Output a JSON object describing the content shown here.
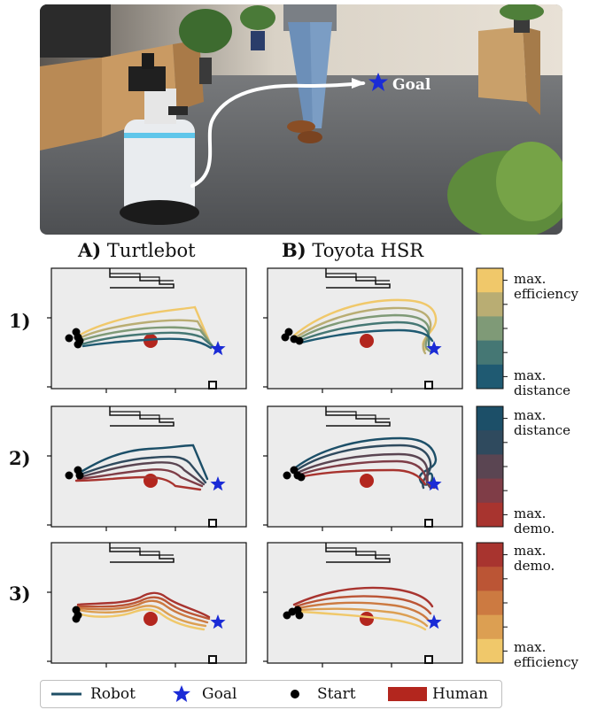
{
  "photo": {
    "goal_label": "Goal"
  },
  "columns": [
    {
      "letter": "A)",
      "name": "Turtlebot"
    },
    {
      "letter": "B)",
      "name": "Toyota HSR"
    }
  ],
  "rows": [
    "1)",
    "2)",
    "3)"
  ],
  "colorbars": [
    {
      "top_label": "max.\nefficiency",
      "bottom_label": "max.\ndistance",
      "colors": [
        "#f0c86a",
        "#b9ad73",
        "#7f9a77",
        "#457774",
        "#1f5a72"
      ]
    },
    {
      "top_label": "max.\ndistance",
      "bottom_label": "max.\ndemo.",
      "colors": [
        "#1c4f68",
        "#2f4a5e",
        "#5a4552",
        "#7f3d47",
        "#a8342f"
      ]
    },
    {
      "top_label": "max.\ndemo.",
      "bottom_label": "max.\nefficiency",
      "colors": [
        "#a8342f",
        "#bb5535",
        "#cc7a41",
        "#dc9f52",
        "#f0c86a"
      ]
    }
  ],
  "legend": [
    {
      "label": "Robot",
      "symbol": "line",
      "color": "#1f4f66"
    },
    {
      "label": "Goal",
      "symbol": "star",
      "color": "#1a2bd6"
    },
    {
      "label": "Start",
      "symbol": "dot",
      "color": "#000000"
    },
    {
      "label": "Human",
      "symbol": "rect",
      "color": "#b3261e"
    }
  ],
  "chart_data": [
    {
      "type": "line",
      "panel": "A1",
      "robot": "Turtlebot",
      "objective_pair": "efficiency-distance",
      "trajectories": 5
    },
    {
      "type": "line",
      "panel": "B1",
      "robot": "Toyota HSR",
      "objective_pair": "efficiency-distance",
      "trajectories": 5
    },
    {
      "type": "line",
      "panel": "A2",
      "robot": "Turtlebot",
      "objective_pair": "distance-demo",
      "trajectories": 5
    },
    {
      "type": "line",
      "panel": "B2",
      "robot": "Toyota HSR",
      "objective_pair": "distance-demo",
      "trajectories": 5
    },
    {
      "type": "line",
      "panel": "A3",
      "robot": "Turtlebot",
      "objective_pair": "demo-efficiency",
      "trajectories": 5
    },
    {
      "type": "line",
      "panel": "B3",
      "robot": "Toyota HSR",
      "objective_pair": "demo-efficiency",
      "trajectories": 5
    }
  ]
}
